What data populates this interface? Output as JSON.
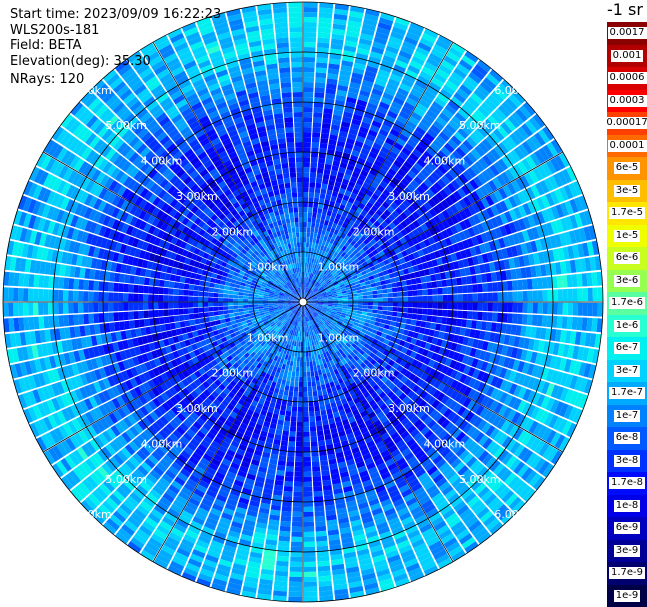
{
  "header": {
    "start_time": "Start time: 2023/09/09 16:22:23",
    "instrument": "WLS200s-181",
    "field": "Field: BETA",
    "elevation": "Elevation(deg): 35.30",
    "nrays": "NRays: 120"
  },
  "colorbar": {
    "title": "-1 sr",
    "entries": [
      {
        "label": "0.0017",
        "color": "#8b0000"
      },
      {
        "label": "0.001",
        "color": "#b20000"
      },
      {
        "label": "0.0006",
        "color": "#d80000"
      },
      {
        "label": "0.0003",
        "color": "#ff0000"
      },
      {
        "label": "0.00017",
        "color": "#ff4000"
      },
      {
        "label": "0.0001",
        "color": "#ff6a00"
      },
      {
        "label": "6e-5",
        "color": "#ff9400"
      },
      {
        "label": "3e-5",
        "color": "#ffbe00"
      },
      {
        "label": "1.7e-5",
        "color": "#ffe600"
      },
      {
        "label": "1e-5",
        "color": "#f0ff00"
      },
      {
        "label": "6e-6",
        "color": "#c8ff1e"
      },
      {
        "label": "3e-6",
        "color": "#96ff50"
      },
      {
        "label": "1.7e-6",
        "color": "#5affa0"
      },
      {
        "label": "1e-6",
        "color": "#28ffd2"
      },
      {
        "label": "6e-7",
        "color": "#00f0f0"
      },
      {
        "label": "3e-7",
        "color": "#00d2ff"
      },
      {
        "label": "1.7e-7",
        "color": "#00aaff"
      },
      {
        "label": "1e-7",
        "color": "#0082ff"
      },
      {
        "label": "6e-8",
        "color": "#005aff"
      },
      {
        "label": "3e-8",
        "color": "#0032ff"
      },
      {
        "label": "1.7e-8",
        "color": "#000aff"
      },
      {
        "label": "1e-8",
        "color": "#0000e6"
      },
      {
        "label": "6e-9",
        "color": "#0000be"
      },
      {
        "label": "3e-9",
        "color": "#000096"
      },
      {
        "label": "1.7e-9",
        "color": "#00006e"
      },
      {
        "label": "1e-9",
        "color": "#000046"
      }
    ]
  },
  "chart_data": {
    "type": "heatmap",
    "projection": "polar-ppi",
    "field": "BETA",
    "elevation_deg": 35.3,
    "nrays": 120,
    "range_unit": "km",
    "range_max_km": 6.0,
    "range_rings_km": [
      1.0,
      2.0,
      3.0,
      4.0,
      5.0,
      6.0
    ],
    "range_ring_labels": [
      "1.00km",
      "2.00km",
      "3.00km",
      "4.00km",
      "5.00km",
      "6.00km"
    ],
    "azimuth_lines_deg": [
      0,
      30,
      60,
      90,
      120,
      150,
      180,
      210,
      240,
      270,
      300,
      330
    ],
    "range_profile_log10_beta": [
      {
        "range_km": 0.25,
        "value": -7.3
      },
      {
        "range_km": 0.75,
        "value": -7.0
      },
      {
        "range_km": 1.25,
        "value": -7.1
      },
      {
        "range_km": 1.75,
        "value": -7.4
      },
      {
        "range_km": 2.25,
        "value": -7.6
      },
      {
        "range_km": 2.75,
        "value": -7.7
      },
      {
        "range_km": 3.25,
        "value": -7.65
      },
      {
        "range_km": 3.75,
        "value": -7.5
      },
      {
        "range_km": 4.25,
        "value": -7.2
      },
      {
        "range_km": 4.75,
        "value": -6.8
      },
      {
        "range_km": 5.25,
        "value": -6.5
      },
      {
        "range_km": 5.75,
        "value": -6.7
      }
    ],
    "colorbar_label": "-1 sr",
    "color_scale": "log"
  }
}
